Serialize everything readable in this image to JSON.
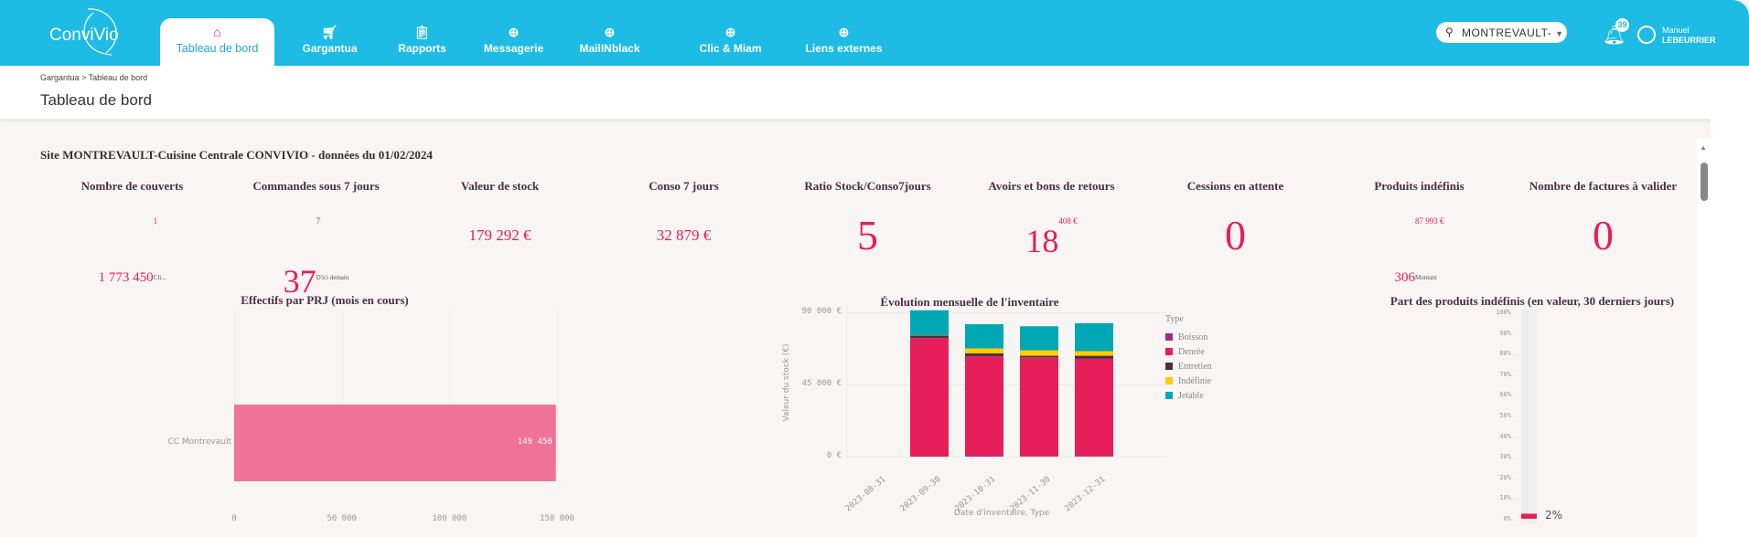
{
  "header": {
    "logo": "ConviVio",
    "tabs": [
      {
        "label": "Tableau de bord",
        "icon": "home-icon",
        "active": true
      },
      {
        "label": "Gargantua",
        "icon": "cart-icon"
      },
      {
        "label": "Rapports",
        "icon": "clipboard-icon"
      },
      {
        "label": "Messagerie",
        "icon": "globe-icon"
      },
      {
        "label": "MailINblack",
        "icon": "globe-icon"
      },
      {
        "label": "Clic & Miam",
        "icon": "globe-icon"
      },
      {
        "label": "Liens externes",
        "icon": "globe-icon"
      }
    ],
    "site_select": "MONTREVAULT-",
    "notifications": "39",
    "user_first": "Manuel",
    "user_last": "LEBEURRIER"
  },
  "breadcrumb": "Gargantua > Tableau de bord",
  "page_title": "Tableau de bord",
  "site_title": "Site MONTREVAULT-Cuisine Centrale CONVIVIO - données du 01/02/2024",
  "kpis": [
    {
      "label": "Nombre de couverts",
      "value": "1 773 450",
      "sup": "1",
      "sub": "Cli..."
    },
    {
      "label": "Commandes sous 7 jours",
      "value": "37",
      "sup": "7",
      "sub": "D'ici demain"
    },
    {
      "label": "Valeur de stock",
      "value": "179 292 €"
    },
    {
      "label": "Conso 7 jours",
      "value": "32 879 €"
    },
    {
      "label": "Ratio Stock/Conso7jours",
      "value": "5"
    },
    {
      "label": "Avoirs et bons de retours",
      "value": "18",
      "sup": "408 €"
    },
    {
      "label": "Cessions en attente",
      "value": "0"
    },
    {
      "label": "Produits indéfinis",
      "value": "306",
      "sup": "87 993 €",
      "sub": "Montant"
    },
    {
      "label": "Nombre de factures à valider",
      "value": "0"
    }
  ],
  "chart_data": [
    {
      "type": "bar",
      "orientation": "horizontal",
      "title": "Effectifs par PRJ (mois en cours)",
      "categories": [
        "CC Montrevault"
      ],
      "values": [
        149450
      ],
      "value_labels": [
        "149 450"
      ],
      "xlim": [
        0,
        150000
      ],
      "xticks": [
        "0",
        "50 000",
        "100 000",
        "150 000"
      ],
      "bar_color": "#ef7399"
    },
    {
      "type": "bar",
      "stacked": true,
      "title": "Évolution mensuelle de l'inventaire",
      "xlabel": "Date d'inventaire, Type",
      "ylabel": "Valeur du stock (€)",
      "ylim": [
        0,
        90000
      ],
      "yticks": [
        "0 €",
        "45 000 €",
        "90 000 €"
      ],
      "ytick_values": [
        0,
        45000,
        90000
      ],
      "categories": [
        "2023-08-31",
        "2023-09-30",
        "2023-10-31",
        "2023-11-30",
        "2023-12-31"
      ],
      "legend_title": "Type",
      "legend": "right",
      "series": [
        {
          "name": "Boisson",
          "color": "#9b2c8a",
          "values": [
            0,
            0,
            300,
            100,
            100
          ]
        },
        {
          "name": "Denrée",
          "color": "#e61e5a",
          "values": [
            0,
            73900,
            62240,
            61850,
            60900
          ]
        },
        {
          "name": "Entretien",
          "color": "#4a2f3f",
          "values": [
            0,
            1700,
            1900,
            960,
            1915
          ]
        },
        {
          "name": "Indéfinie",
          "color": "#ffcc00",
          "values": [
            0,
            200,
            3060,
            3450,
            2870
          ]
        },
        {
          "name": "Jetable",
          "color": "#00a7b4",
          "values": [
            0,
            15500,
            15130,
            14940,
            17430
          ]
        }
      ]
    },
    {
      "type": "bar",
      "title": "Part des produits indéfinis (en valeur, 30 derniers jours)",
      "values": [
        2
      ],
      "value_label": "2%",
      "ylim": [
        0,
        100
      ],
      "yticks": [
        "0%",
        "10%",
        "20%",
        "30%",
        "40%",
        "50%",
        "60%",
        "70%",
        "80%",
        "90%",
        "100%"
      ],
      "bar_color": "#e61e5a"
    }
  ]
}
